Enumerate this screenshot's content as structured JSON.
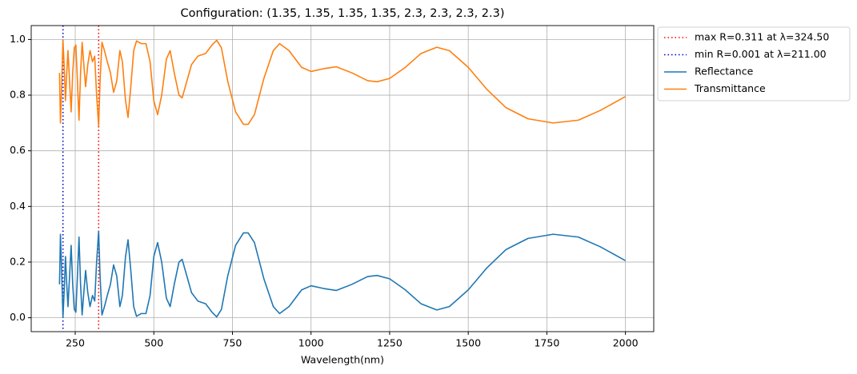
{
  "chart_data": {
    "type": "line",
    "title": "Configuration: (1.35, 1.35, 1.35, 1.35, 2.3, 2.3, 2.3, 2.3)",
    "xlabel": "Wavelength(nm)",
    "xlim": [
      110,
      2090
    ],
    "ylim": [
      -0.05,
      1.05
    ],
    "xticks": [
      250,
      500,
      750,
      1000,
      1250,
      1500,
      1750,
      2000
    ],
    "yticks": [
      {
        "value": 0,
        "label": "0.0"
      },
      0.2,
      0.4,
      0.6,
      0.8,
      {
        "value": 1,
        "label": "1.0"
      }
    ],
    "grid": true,
    "legend": "outside upper right",
    "vlines": [
      {
        "name": "max R=0.311 at λ=324.50",
        "x": 324.5,
        "color": "#ff0000"
      },
      {
        "name": "min R=0.001 at λ=211.00",
        "x": 211,
        "color": "#0000cc"
      }
    ],
    "x": [
      200,
      203,
      206,
      211,
      215,
      219,
      223,
      227,
      232,
      237,
      242,
      247,
      252,
      257,
      262,
      267,
      272,
      278,
      283,
      290,
      297,
      305,
      312,
      318,
      324.5,
      329,
      335,
      343,
      352,
      362,
      372,
      382,
      392,
      400,
      410,
      418,
      426,
      436,
      445,
      460,
      475,
      488,
      500,
      512,
      525,
      540,
      552,
      565,
      580,
      590,
      605,
      620,
      640,
      665,
      685,
      700,
      715,
      735,
      760,
      785,
      800,
      820,
      850,
      880,
      900,
      930,
      970,
      1000,
      1040,
      1080,
      1130,
      1180,
      1210,
      1250,
      1300,
      1350,
      1400,
      1440,
      1500,
      1560,
      1620,
      1690,
      1770,
      1850,
      1920,
      2000
    ],
    "series": [
      {
        "name": "Reflectance",
        "color": "#1f77b4",
        "values": [
          0.12,
          0.3,
          0.2,
          0.001,
          0.1,
          0.22,
          0.12,
          0.04,
          0.15,
          0.26,
          0.12,
          0.03,
          0.02,
          0.15,
          0.29,
          0.12,
          0.01,
          0.1,
          0.17,
          0.09,
          0.04,
          0.08,
          0.06,
          0.2,
          0.311,
          0.15,
          0.01,
          0.04,
          0.08,
          0.12,
          0.19,
          0.15,
          0.04,
          0.08,
          0.22,
          0.28,
          0.18,
          0.04,
          0.005,
          0.015,
          0.015,
          0.08,
          0.22,
          0.27,
          0.2,
          0.07,
          0.04,
          0.12,
          0.2,
          0.21,
          0.15,
          0.09,
          0.06,
          0.05,
          0.02,
          0.003,
          0.03,
          0.15,
          0.26,
          0.305,
          0.305,
          0.27,
          0.14,
          0.04,
          0.015,
          0.04,
          0.1,
          0.115,
          0.105,
          0.098,
          0.12,
          0.148,
          0.152,
          0.14,
          0.1,
          0.05,
          0.028,
          0.04,
          0.1,
          0.18,
          0.245,
          0.285,
          0.3,
          0.29,
          0.255,
          0.205
        ]
      },
      {
        "name": "Transmittance",
        "color": "#ff7f0e",
        "values": [
          0.88,
          0.7,
          0.8,
          0.999,
          0.9,
          0.78,
          0.88,
          0.96,
          0.85,
          0.74,
          0.88,
          0.97,
          0.98,
          0.85,
          0.71,
          0.88,
          0.99,
          0.9,
          0.83,
          0.91,
          0.96,
          0.92,
          0.94,
          0.8,
          0.689,
          0.85,
          0.99,
          0.96,
          0.92,
          0.88,
          0.81,
          0.85,
          0.96,
          0.92,
          0.78,
          0.72,
          0.82,
          0.96,
          0.995,
          0.985,
          0.985,
          0.92,
          0.78,
          0.73,
          0.8,
          0.93,
          0.96,
          0.88,
          0.8,
          0.79,
          0.85,
          0.91,
          0.94,
          0.95,
          0.98,
          0.997,
          0.97,
          0.85,
          0.74,
          0.695,
          0.695,
          0.73,
          0.86,
          0.96,
          0.985,
          0.96,
          0.9,
          0.885,
          0.895,
          0.902,
          0.88,
          0.852,
          0.848,
          0.86,
          0.9,
          0.95,
          0.972,
          0.96,
          0.9,
          0.82,
          0.755,
          0.715,
          0.7,
          0.71,
          0.745,
          0.795
        ]
      }
    ]
  }
}
